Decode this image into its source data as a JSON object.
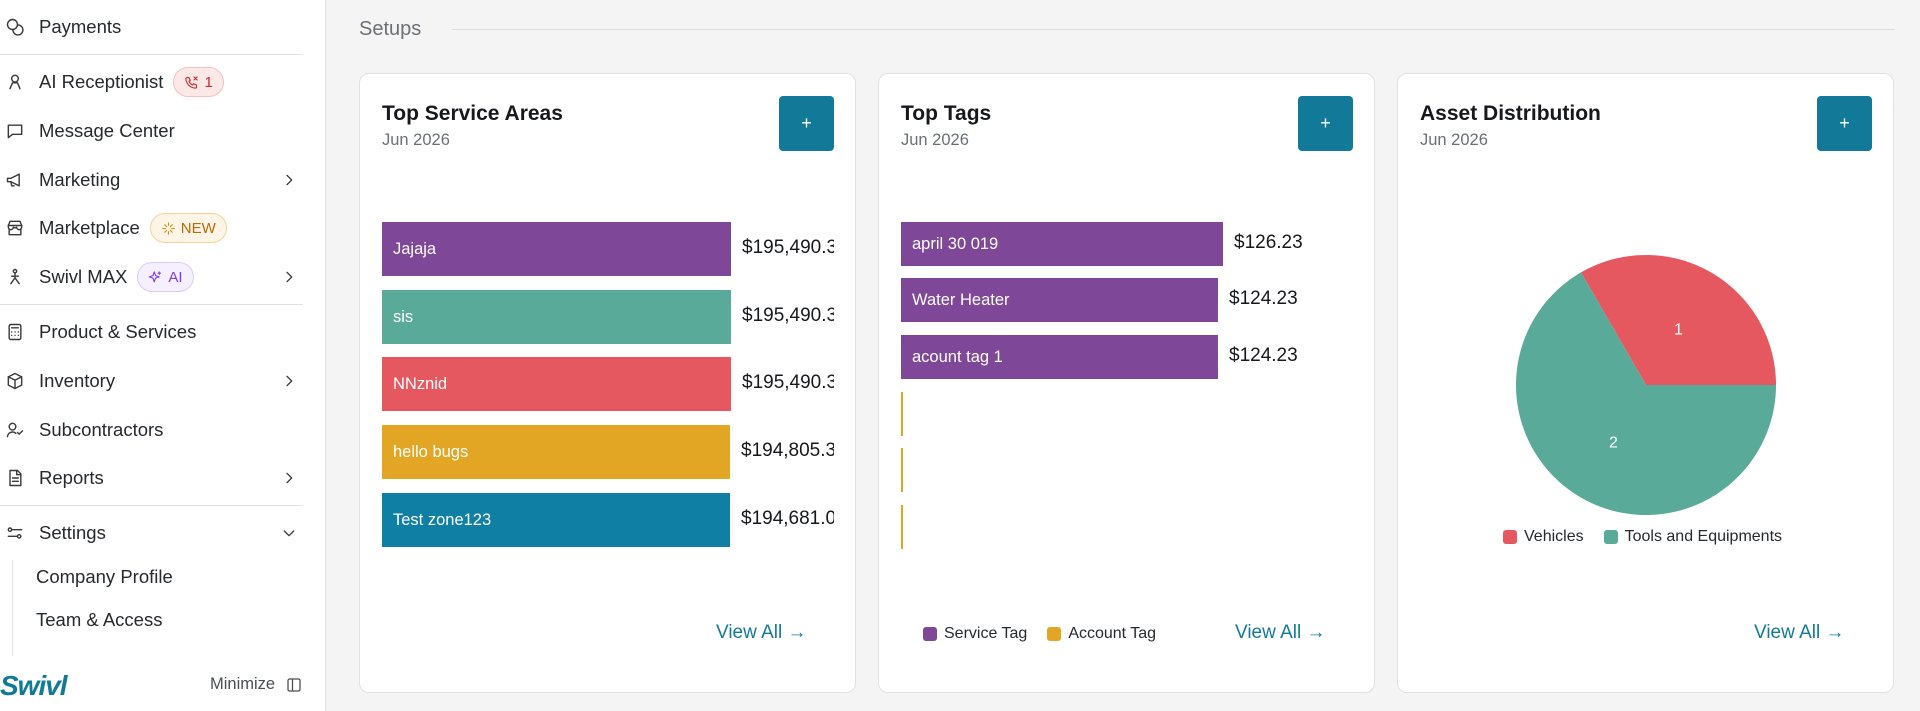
{
  "sidebar": {
    "items": [
      {
        "label": "Payments",
        "icon": "coins-icon"
      },
      {
        "label": "AI Receptionist",
        "icon": "receptionist-icon",
        "badge": "1"
      },
      {
        "label": "Message Center",
        "icon": "message-icon"
      },
      {
        "label": "Marketing",
        "icon": "megaphone-icon"
      },
      {
        "label": "Marketplace",
        "icon": "store-icon",
        "badge": "NEW"
      },
      {
        "label": "Swivl MAX",
        "icon": "person-max-icon",
        "badge": "AI"
      },
      {
        "label": "Product & Services",
        "icon": "calculator-icon"
      },
      {
        "label": "Inventory",
        "icon": "box-icon"
      },
      {
        "label": "Subcontractors",
        "icon": "subcontractor-icon"
      },
      {
        "label": "Reports",
        "icon": "report-icon"
      },
      {
        "label": "Settings",
        "icon": "settings-icon"
      }
    ],
    "settings_sub": [
      "Company Profile",
      "Team & Access"
    ],
    "logo": "Swivl",
    "minimize_label": "Minimize"
  },
  "main": {
    "section_title": "Setups",
    "cards": [
      {
        "title": "Top Service Areas",
        "period": "Jun 2026",
        "add_label": "+",
        "view_all": "View All →",
        "bars": [
          {
            "label": "Jajaja",
            "value": "$195,490.3",
            "color": "#7f4797"
          },
          {
            "label": "sis",
            "value": "$195,490.3",
            "color": "#5aaa99"
          },
          {
            "label": "NNznid",
            "value": "$195,490.3",
            "color": "#e5585f"
          },
          {
            "label": "hello bugs",
            "value": "$194,805.3",
            "color": "#e3a624"
          },
          {
            "label": "Test zone123",
            "value": "$194,681.0",
            "color": "#0f7fa3"
          }
        ]
      },
      {
        "title": "Top Tags",
        "period": "Jun 2026",
        "add_label": "+",
        "view_all": "View All →",
        "bars": [
          {
            "label": "april 30 019",
            "value": "$126.23",
            "color": "#7f4797"
          },
          {
            "label": "Water Heater",
            "value": "$124.23",
            "color": "#7f4797"
          },
          {
            "label": "acount tag 1",
            "value": "$124.23",
            "color": "#7f4797"
          }
        ],
        "legend": [
          {
            "label": "Service Tag",
            "color": "#7f4797"
          },
          {
            "label": "Account Tag",
            "color": "#e3a624"
          }
        ]
      },
      {
        "title": "Asset Distribution",
        "period": "Jun 2026",
        "add_label": "+",
        "view_all": "View All →",
        "slices": [
          {
            "label": "Vehicles",
            "value": 1,
            "color": "#e5585f"
          },
          {
            "label": "Tools and Equipments",
            "value": 2,
            "color": "#5aaa99"
          }
        ]
      }
    ]
  }
}
